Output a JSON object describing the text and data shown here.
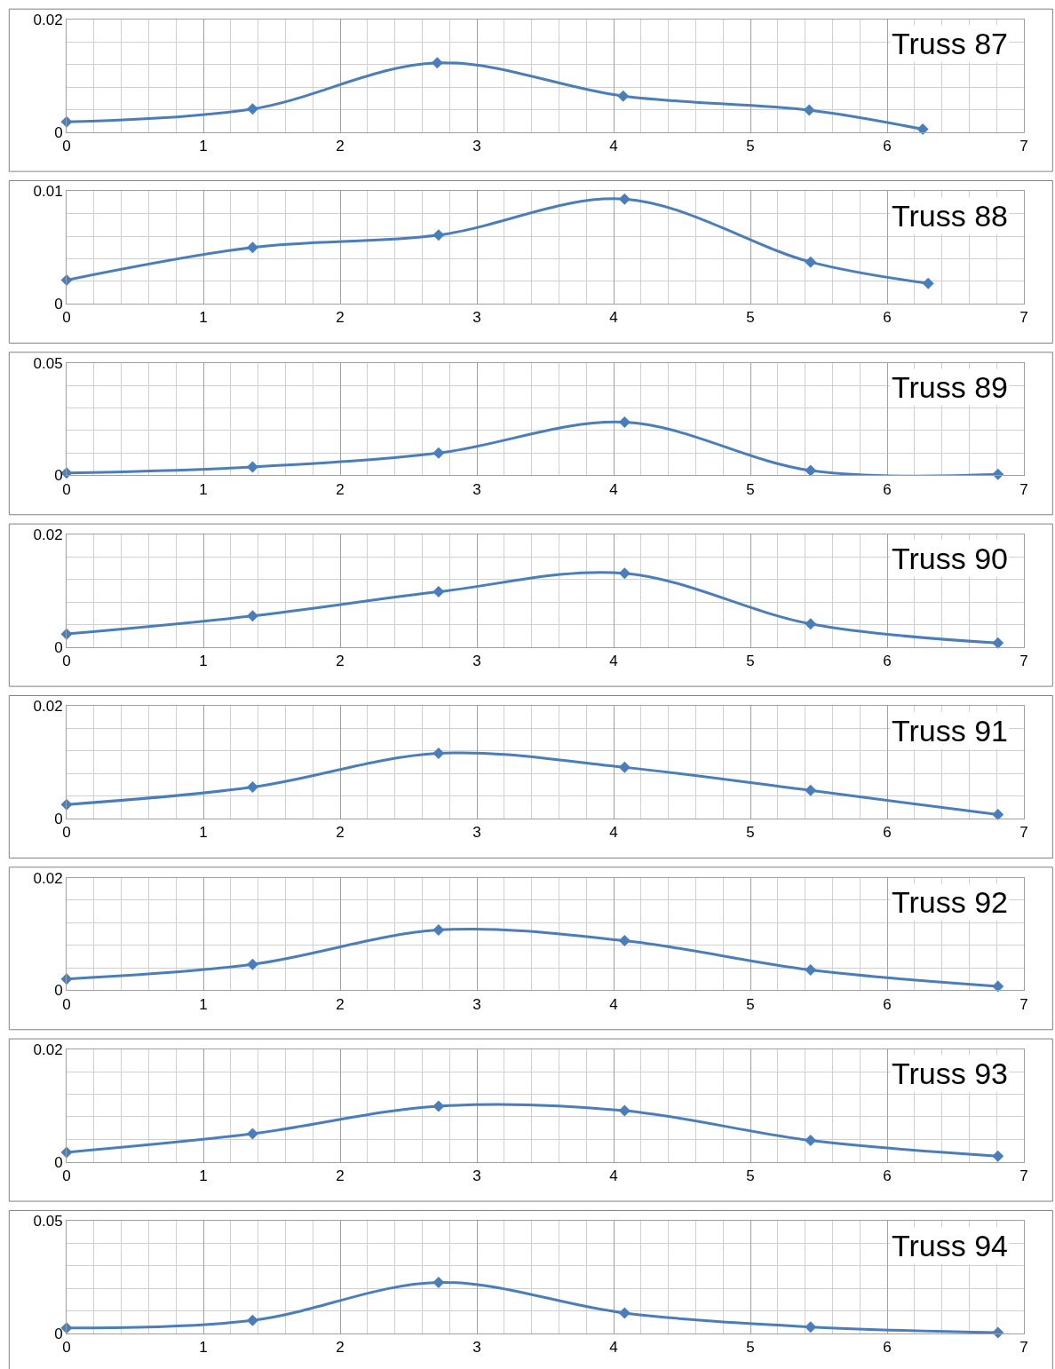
{
  "chart_data": [
    {
      "type": "line",
      "title": "Truss 87",
      "x": [
        0,
        1.36,
        2.71,
        4.07,
        5.43,
        6.26
      ],
      "series": [
        {
          "color": "#4a7ebb",
          "values": [
            0.0018,
            0.0041,
            0.0123,
            0.0064,
            0.0039,
            0.0005
          ]
        }
      ],
      "xlim": [
        0,
        7
      ],
      "xticks": [
        0,
        1,
        2,
        3,
        4,
        5,
        6,
        7
      ],
      "ylim": [
        0,
        0.02
      ],
      "yticks": [
        0,
        0.02
      ],
      "grid": true,
      "marker": "diamond",
      "line_style": "solid"
    },
    {
      "type": "line",
      "title": "Truss 88",
      "x": [
        0,
        1.36,
        2.72,
        4.08,
        5.44,
        6.3
      ],
      "series": [
        {
          "color": "#4a7ebb",
          "values": [
            0.0021,
            0.005,
            0.0061,
            0.0093,
            0.0037,
            0.0018
          ]
        }
      ],
      "xlim": [
        0,
        7
      ],
      "xticks": [
        0,
        1,
        2,
        3,
        4,
        5,
        6,
        7
      ],
      "ylim": [
        0,
        0.01
      ],
      "yticks": [
        0,
        0.01
      ],
      "grid": true,
      "marker": "diamond",
      "line_style": "solid"
    },
    {
      "type": "line",
      "title": "Truss 89",
      "x": [
        0,
        1.36,
        2.72,
        4.08,
        5.44,
        6.81
      ],
      "series": [
        {
          "color": "#4a7ebb",
          "values": [
            0.001,
            0.0037,
            0.0099,
            0.0236,
            0.0021,
            0.0004
          ]
        }
      ],
      "xlim": [
        0,
        7
      ],
      "xticks": [
        0,
        1,
        2,
        3,
        4,
        5,
        6,
        7
      ],
      "ylim": [
        0,
        0.05
      ],
      "yticks": [
        0,
        0.05
      ],
      "grid": true,
      "marker": "diamond",
      "line_style": "solid"
    },
    {
      "type": "line",
      "title": "Truss 90",
      "x": [
        0,
        1.36,
        2.72,
        4.08,
        5.44,
        6.81
      ],
      "series": [
        {
          "color": "#4a7ebb",
          "values": [
            0.0023,
            0.0055,
            0.0098,
            0.0131,
            0.0041,
            0.0007
          ]
        }
      ],
      "xlim": [
        0,
        7
      ],
      "xticks": [
        0,
        1,
        2,
        3,
        4,
        5,
        6,
        7
      ],
      "ylim": [
        0,
        0.02
      ],
      "yticks": [
        0,
        0.02
      ],
      "grid": true,
      "marker": "diamond",
      "line_style": "solid"
    },
    {
      "type": "line",
      "title": "Truss 91",
      "x": [
        0,
        1.36,
        2.72,
        4.08,
        5.44,
        6.81
      ],
      "series": [
        {
          "color": "#4a7ebb",
          "values": [
            0.0025,
            0.0056,
            0.0116,
            0.0091,
            0.005,
            0.0007
          ]
        }
      ],
      "xlim": [
        0,
        7
      ],
      "xticks": [
        0,
        1,
        2,
        3,
        4,
        5,
        6,
        7
      ],
      "ylim": [
        0,
        0.02
      ],
      "yticks": [
        0,
        0.02
      ],
      "grid": true,
      "marker": "diamond",
      "line_style": "solid"
    },
    {
      "type": "line",
      "title": "Truss 92",
      "x": [
        0,
        1.36,
        2.72,
        4.08,
        5.44,
        6.81
      ],
      "series": [
        {
          "color": "#4a7ebb",
          "values": [
            0.002,
            0.0046,
            0.0107,
            0.0088,
            0.0036,
            0.0007
          ]
        }
      ],
      "xlim": [
        0,
        7
      ],
      "xticks": [
        0,
        1,
        2,
        3,
        4,
        5,
        6,
        7
      ],
      "ylim": [
        0,
        0.02
      ],
      "yticks": [
        0,
        0.02
      ],
      "grid": true,
      "marker": "diamond",
      "line_style": "solid"
    },
    {
      "type": "line",
      "title": "Truss 93",
      "x": [
        0,
        1.36,
        2.72,
        4.08,
        5.44,
        6.81
      ],
      "series": [
        {
          "color": "#4a7ebb",
          "values": [
            0.0017,
            0.005,
            0.0099,
            0.0091,
            0.0038,
            0.001
          ]
        }
      ],
      "xlim": [
        0,
        7
      ],
      "xticks": [
        0,
        1,
        2,
        3,
        4,
        5,
        6,
        7
      ],
      "ylim": [
        0,
        0.02
      ],
      "yticks": [
        0,
        0.02
      ],
      "grid": true,
      "marker": "diamond",
      "line_style": "solid"
    },
    {
      "type": "line",
      "title": "Truss 94",
      "x": [
        0,
        1.36,
        2.72,
        4.08,
        5.44,
        6.81
      ],
      "series": [
        {
          "color": "#4a7ebb",
          "values": [
            0.0025,
            0.0058,
            0.0227,
            0.0091,
            0.0029,
            0.0004
          ]
        }
      ],
      "xlim": [
        0,
        7
      ],
      "xticks": [
        0,
        1,
        2,
        3,
        4,
        5,
        6,
        7
      ],
      "ylim": [
        0,
        0.05
      ],
      "yticks": [
        0,
        0.05
      ],
      "grid": true,
      "marker": "diamond",
      "line_style": "solid"
    }
  ]
}
